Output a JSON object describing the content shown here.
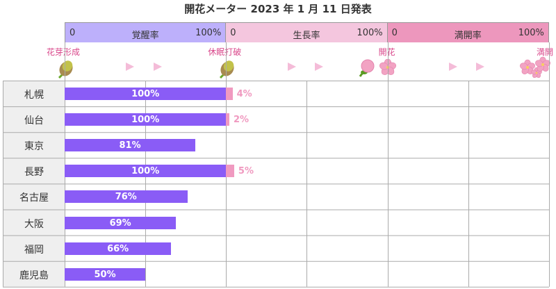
{
  "title": "開花メーター 2023 年 1 月 11 日発表",
  "phases": [
    {
      "name": "覚醒率",
      "start": "0",
      "end": "100%",
      "color": "#bdb0fb"
    },
    {
      "name": "生長率",
      "start": "0",
      "end": "100%",
      "color": "#f4c6de"
    },
    {
      "name": "満開率",
      "start": "0",
      "end": "100%",
      "color": "#ed97bd"
    }
  ],
  "stages": [
    "花芽形成",
    "休眠打破",
    "開花",
    "満開"
  ],
  "icons": [
    "bud-icon",
    "bud-icon",
    "flower-bud-icon",
    "blossom-icon",
    "blossoms-icon"
  ],
  "colors": {
    "wake_bar": "#8a5cf6",
    "growth_bar": "#f09ac0",
    "stage_text": "#d9468a"
  },
  "chart_data": {
    "type": "bar",
    "orientation": "horizontal-stacked",
    "categories": [
      "札幌",
      "仙台",
      "東京",
      "長野",
      "名古屋",
      "大阪",
      "福岡",
      "鹿児島"
    ],
    "series": [
      {
        "name": "覚醒率",
        "values": [
          100,
          100,
          81,
          100,
          76,
          69,
          66,
          50
        ],
        "labels": [
          "100%",
          "100%",
          "81%",
          "100%",
          "76%",
          "69%",
          "66%",
          "50%"
        ]
      },
      {
        "name": "生長率",
        "values": [
          4,
          2,
          null,
          5,
          null,
          null,
          null,
          null
        ],
        "labels": [
          "4%",
          "2%",
          "",
          "5%",
          "",
          "",
          "",
          ""
        ]
      }
    ],
    "xlim": [
      0,
      300
    ],
    "grid": true
  }
}
